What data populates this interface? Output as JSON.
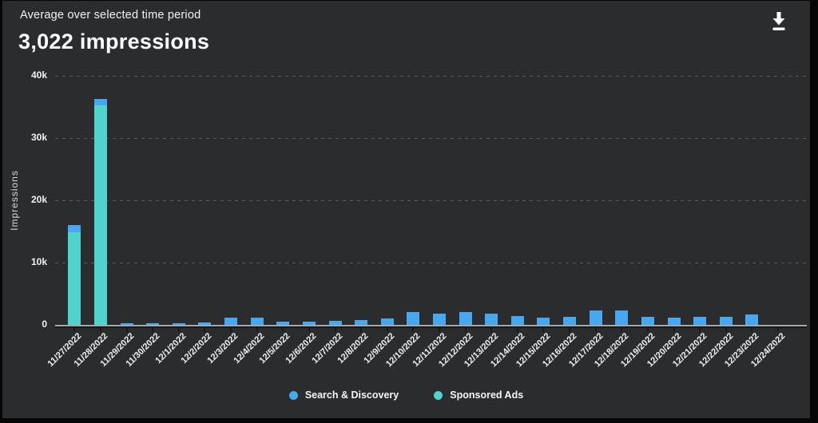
{
  "header": {
    "subtitle": "Average over selected time period",
    "metric": "3,022 impressions"
  },
  "toolbar": {
    "download_icon": "download"
  },
  "y_axis": {
    "title": "Impressions",
    "ticks": [
      {
        "label": "0",
        "value": 0
      },
      {
        "label": "10k",
        "value": 10000
      },
      {
        "label": "20k",
        "value": 20000
      },
      {
        "label": "30k",
        "value": 30000
      },
      {
        "label": "40k",
        "value": 40000
      }
    ]
  },
  "legend": [
    {
      "label": "Search & Discovery",
      "color": "#47a8ef"
    },
    {
      "label": "Sponsored Ads",
      "color": "#4fd3cb"
    }
  ],
  "colors": {
    "page_background": "#060606",
    "card_background": "#2b2c2d",
    "grid": "#57595b",
    "axis": "#a4a7a9",
    "text": "#f0f0f0",
    "search_discovery": "#47a8ef",
    "sponsored_ads": "#4fd3cb"
  },
  "chart_data": {
    "type": "bar",
    "stacked": true,
    "title": "3,022 impressions",
    "subtitle": "Average over selected time period",
    "xlabel": "",
    "ylabel": "Impressions",
    "ylim": [
      0,
      40000
    ],
    "grid": "dashed-horizontal",
    "legend_position": "bottom-center",
    "categories": [
      "11/27/2022",
      "11/28/2022",
      "11/29/2022",
      "11/30/2022",
      "12/1/2022",
      "12/2/2022",
      "12/3/2022",
      "12/4/2022",
      "12/5/2022",
      "12/6/2022",
      "12/7/2022",
      "12/8/2022",
      "12/9/2022",
      "12/10/2022",
      "12/11/2022",
      "12/12/2022",
      "12/13/2022",
      "12/14/2022",
      "12/15/2022",
      "12/16/2022",
      "12/17/2022",
      "12/18/2022",
      "12/19/2022",
      "12/20/2022",
      "12/21/2022",
      "12/22/2022",
      "12/23/2022",
      "12/24/2022"
    ],
    "series": [
      {
        "name": "Search & Discovery",
        "color": "#47a8ef",
        "values": [
          1200,
          1000,
          300,
          200,
          250,
          400,
          1100,
          1150,
          450,
          450,
          600,
          800,
          1000,
          2000,
          1850,
          2100,
          1750,
          1450,
          1200,
          1300,
          2350,
          2250,
          1300,
          1100,
          1300,
          1300,
          1650,
          0
        ]
      },
      {
        "name": "Sponsored Ads",
        "color": "#4fd3cb",
        "values": [
          14900,
          35300,
          0,
          0,
          0,
          0,
          0,
          0,
          0,
          0,
          0,
          0,
          0,
          0,
          0,
          0,
          0,
          0,
          0,
          0,
          0,
          0,
          0,
          0,
          0,
          0,
          0,
          0
        ]
      }
    ]
  }
}
